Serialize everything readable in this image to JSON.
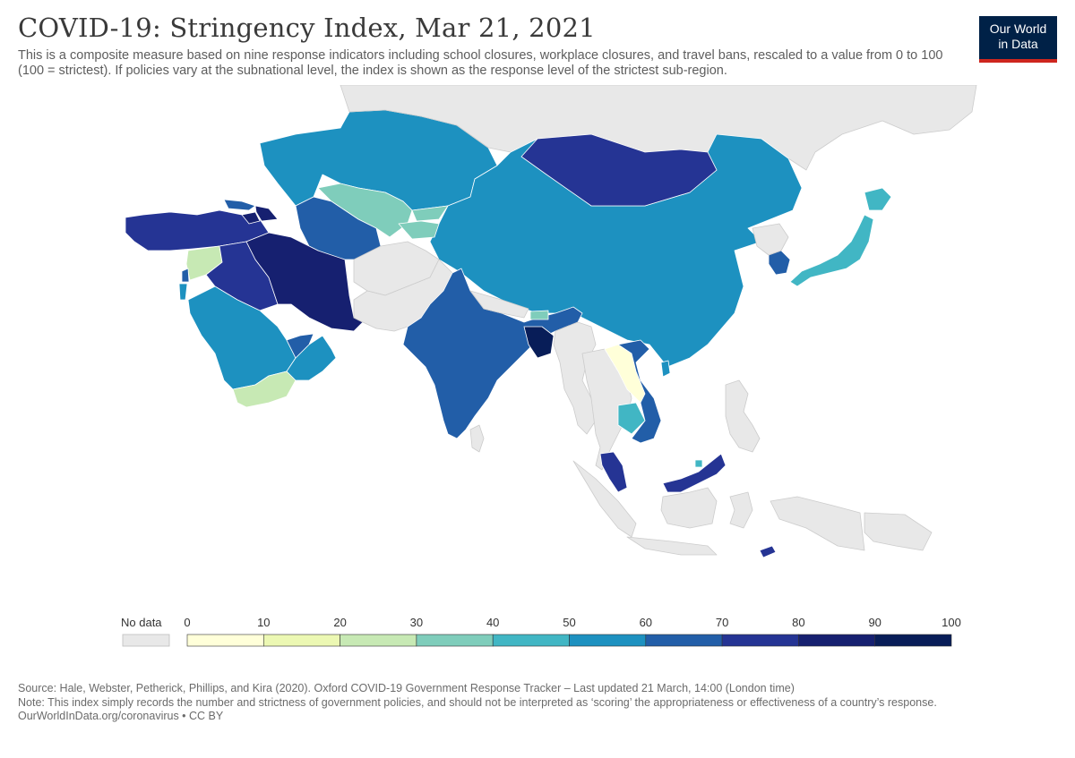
{
  "header": {
    "title": "COVID-19: Stringency Index, Mar 21, 2021",
    "subtitle": "This is a composite measure based on nine response indicators including school closures, workplace closures, and travel bans, rescaled to a value from 0 to 100 (100 = strictest). If policies vary at the subnational level, the index is shown as the response level of the strictest sub-region."
  },
  "logo": {
    "line1": "Our World",
    "line2": "in Data",
    "bg_color": "#002147",
    "bar_color": "#ce261e"
  },
  "legend": {
    "no_data_label": "No data",
    "no_data_color": "#e8e8e8",
    "ticks": [
      "0",
      "10",
      "20",
      "30",
      "40",
      "50",
      "60",
      "70",
      "80",
      "90",
      "100"
    ],
    "bins": [
      {
        "min": 0,
        "max": 10,
        "color": "#ffffd9"
      },
      {
        "min": 10,
        "max": 20,
        "color": "#ecf8b3"
      },
      {
        "min": 20,
        "max": 30,
        "color": "#c7e9b4"
      },
      {
        "min": 30,
        "max": 40,
        "color": "#7fcdbb"
      },
      {
        "min": 40,
        "max": 50,
        "color": "#41b6c4"
      },
      {
        "min": 50,
        "max": 60,
        "color": "#1d91c0"
      },
      {
        "min": 60,
        "max": 70,
        "color": "#225ea8"
      },
      {
        "min": 70,
        "max": 80,
        "color": "#253494"
      },
      {
        "min": 80,
        "max": 90,
        "color": "#162070"
      },
      {
        "min": 90,
        "max": 100,
        "color": "#081d58"
      }
    ]
  },
  "map": {
    "background_color": "#ffffff",
    "no_data_fill": "#e8e8e8",
    "border_color": "#cccccc",
    "regions": [
      {
        "name": "Kazakhstan",
        "bin": 5
      },
      {
        "name": "Russia",
        "bin": -1
      },
      {
        "name": "China",
        "bin": 5
      },
      {
        "name": "Mongolia",
        "bin": 7
      },
      {
        "name": "Uzbekistan",
        "bin": 3
      },
      {
        "name": "Turkmenistan",
        "bin": 6
      },
      {
        "name": "Kyrgyzstan",
        "bin": 3
      },
      {
        "name": "Tajikistan",
        "bin": 3
      },
      {
        "name": "Turkey",
        "bin": 7
      },
      {
        "name": "Georgia",
        "bin": 6
      },
      {
        "name": "Armenia",
        "bin": 8
      },
      {
        "name": "Azerbaijan",
        "bin": 8
      },
      {
        "name": "Syria",
        "bin": 2
      },
      {
        "name": "Lebanon",
        "bin": 6
      },
      {
        "name": "Israel",
        "bin": 5
      },
      {
        "name": "Iraq",
        "bin": 7
      },
      {
        "name": "Iran",
        "bin": 8
      },
      {
        "name": "Saudi Arabia",
        "bin": 5
      },
      {
        "name": "Yemen",
        "bin": 2
      },
      {
        "name": "Oman",
        "bin": 5
      },
      {
        "name": "United Arab Emirates",
        "bin": 6
      },
      {
        "name": "Afghanistan",
        "bin": -1
      },
      {
        "name": "Pakistan",
        "bin": -1
      },
      {
        "name": "India",
        "bin": 6
      },
      {
        "name": "Nepal",
        "bin": -1
      },
      {
        "name": "Bhutan",
        "bin": 3
      },
      {
        "name": "Bangladesh",
        "bin": 9
      },
      {
        "name": "Myanmar",
        "bin": -1
      },
      {
        "name": "Sri Lanka",
        "bin": -1
      },
      {
        "name": "Thailand",
        "bin": -1
      },
      {
        "name": "Laos",
        "bin": 0
      },
      {
        "name": "Vietnam",
        "bin": 6
      },
      {
        "name": "Cambodia",
        "bin": 4
      },
      {
        "name": "Malaysia",
        "bin": 7
      },
      {
        "name": "Brunei",
        "bin": 4
      },
      {
        "name": "Indonesia",
        "bin": -1
      },
      {
        "name": "Philippines",
        "bin": -1
      },
      {
        "name": "Timor-Leste",
        "bin": 7
      },
      {
        "name": "Papua New Guinea",
        "bin": -1
      },
      {
        "name": "South Korea",
        "bin": 6
      },
      {
        "name": "North Korea",
        "bin": -1
      },
      {
        "name": "Japan",
        "bin": 4
      },
      {
        "name": "Taiwan",
        "bin": 5
      }
    ]
  },
  "footer": {
    "source": "Source: Hale, Webster, Petherick, Phillips, and Kira (2020). Oxford COVID-19 Government Response Tracker – Last updated 21 March, 14:00 (London time)",
    "note": "Note: This index simply records the number and strictness of government policies, and should not be interpreted as ‘scoring’ the appropriateness or effectiveness of a country’s response.",
    "url": "OurWorldInData.org/coronavirus • CC BY"
  }
}
